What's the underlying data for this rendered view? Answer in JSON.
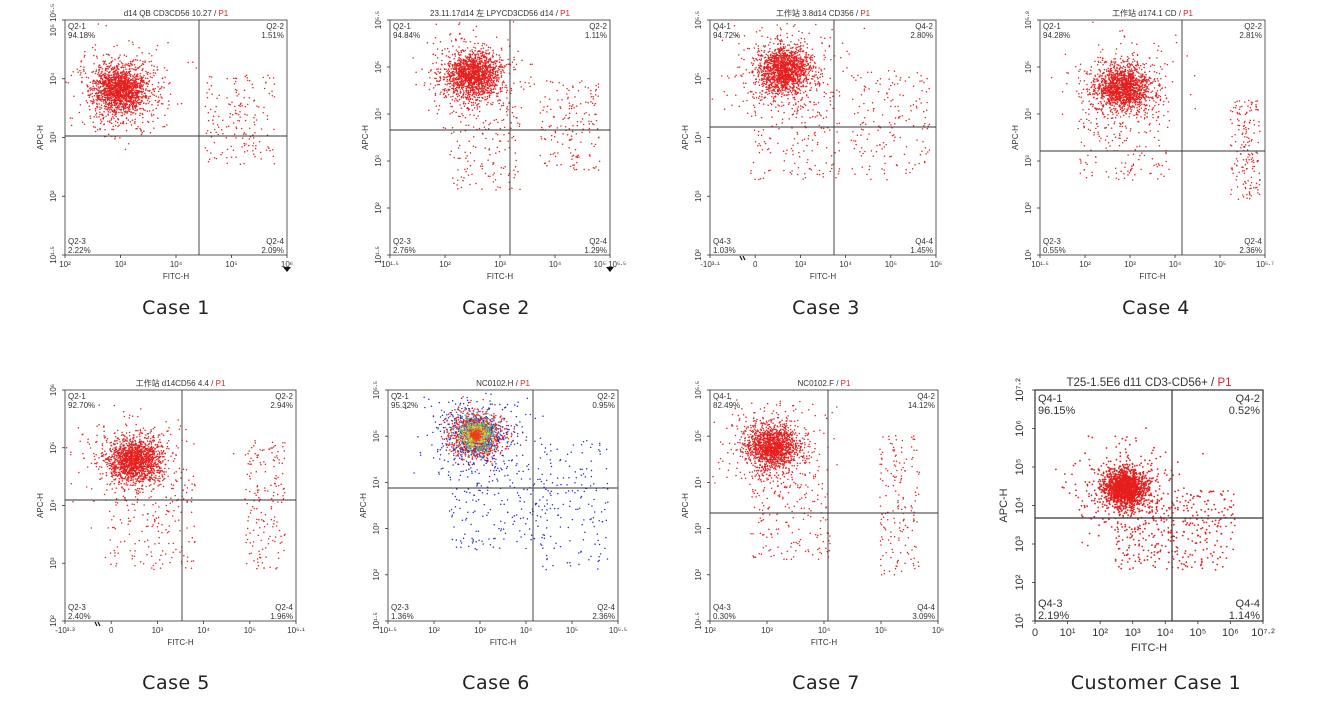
{
  "colors": {
    "dots": "#e61e1e",
    "blue": "#1e2fd6",
    "axis": "#333333",
    "quad": "#333333"
  },
  "captions": [
    "Case 1",
    "Case 2",
    "Case 3",
    "Case 4",
    "Case 5",
    "Case 6",
    "Case 7",
    "Customer Case 1"
  ],
  "chart_data": [
    {
      "type": "scatter",
      "title": "d14 QB CD3CD56 10.27",
      "population": "P1",
      "xlabel": "FITC-H",
      "ylabel": "APC-H",
      "x_ticks": [
        "10²",
        "10³",
        "10⁴",
        "10⁵",
        "10⁶"
      ],
      "y_ticks": [
        "10¹·⁵",
        "10²",
        "10³",
        "10⁴",
        "10⁵ 10⁵·⁵"
      ],
      "quadrants": [
        {
          "name": "Q2-1",
          "pct": "94.18%"
        },
        {
          "name": "Q2-2",
          "pct": "1.51%"
        },
        {
          "name": "Q2-3",
          "pct": "2.22%"
        },
        {
          "name": "Q2-4",
          "pct": "2.09%"
        }
      ]
    },
    {
      "type": "scatter",
      "title": "23.11.17d14 左 LPYCD3CD56 d14",
      "population": "P1",
      "xlabel": "FITC-H",
      "ylabel": "APC-H",
      "x_ticks": [
        "10¹·⁵",
        "10²",
        "10³",
        "10⁴",
        "10⁵ 10⁵·⁵"
      ],
      "y_ticks": [
        "10¹·⁵",
        "10²",
        "10³",
        "10⁴",
        "10⁵",
        "10⁵·⁵"
      ],
      "quadrants": [
        {
          "name": "Q2-1",
          "pct": "94.84%"
        },
        {
          "name": "Q2-2",
          "pct": "1.11%"
        },
        {
          "name": "Q2-3",
          "pct": "2.76%"
        },
        {
          "name": "Q2-4",
          "pct": "1.29%"
        }
      ]
    },
    {
      "type": "scatter",
      "title": "工作站 3.8d14 CD356",
      "population": "P1",
      "xlabel": "FITC-H",
      "ylabel": "APC-H",
      "x_ticks": [
        "-10³·¹",
        "0",
        "10³",
        "10⁴",
        "10⁵",
        "10⁶"
      ],
      "y_ticks": [
        "10²",
        "10³",
        "10⁴",
        "10⁵",
        "10⁵·⁵"
      ],
      "quadrants": [
        {
          "name": "Q4-1",
          "pct": "94.72%"
        },
        {
          "name": "Q4-2",
          "pct": "2.80%"
        },
        {
          "name": "Q4-3",
          "pct": "1.03%"
        },
        {
          "name": "Q4-4",
          "pct": "1.45%"
        }
      ]
    },
    {
      "type": "scatter",
      "title": "工作站 d174.1 CD",
      "population": "P1",
      "xlabel": "FITC-H",
      "ylabel": "APC-H",
      "x_ticks": [
        "10¹·⁵",
        "10²",
        "10³",
        "10⁴",
        "10⁵",
        "10⁵·⁷"
      ],
      "y_ticks": [
        "10¹",
        "10²",
        "10³",
        "10⁴",
        "10⁵",
        "10⁵·⁸"
      ],
      "quadrants": [
        {
          "name": "Q2-1",
          "pct": "94.28%"
        },
        {
          "name": "Q2-2",
          "pct": "2.81%"
        },
        {
          "name": "Q2-3",
          "pct": "0.55%"
        },
        {
          "name": "Q2-4",
          "pct": "2.36%"
        }
      ]
    },
    {
      "type": "scatter",
      "title": "工作站 d14CD56 4.4",
      "population": "P1",
      "xlabel": "FITC-H",
      "ylabel": "APC-H",
      "x_ticks": [
        "-10³·³",
        "0",
        "10³",
        "10⁴",
        "10⁵",
        "10⁶·¹"
      ],
      "y_ticks": [
        "10²",
        "10³",
        "10⁴",
        "10⁵",
        "10⁶"
      ],
      "quadrants": [
        {
          "name": "Q2-1",
          "pct": "92.70%"
        },
        {
          "name": "Q2-2",
          "pct": "2.94%"
        },
        {
          "name": "Q2-3",
          "pct": "2.40%"
        },
        {
          "name": "Q2-4",
          "pct": "1.96%"
        }
      ]
    },
    {
      "type": "scatter",
      "title": "NC0102.H",
      "population": "P1",
      "xlabel": "FITC-H",
      "ylabel": "APC-H",
      "x_ticks": [
        "10¹·⁵",
        "10²",
        "10³",
        "10⁴",
        "10⁵",
        "10⁵·⁵"
      ],
      "y_ticks": [
        "10¹·⁵",
        "10²",
        "10³",
        "10⁴",
        "10⁵",
        "10⁵·⁵"
      ],
      "quadrants": [
        {
          "name": "Q2-1",
          "pct": "95.32%"
        },
        {
          "name": "Q2-2",
          "pct": "0.95%"
        },
        {
          "name": "Q2-3",
          "pct": "1.36%"
        },
        {
          "name": "Q2-4",
          "pct": "2.36%"
        }
      ]
    },
    {
      "type": "scatter",
      "title": "NC0102.F",
      "population": "P1",
      "xlabel": "FITC-H",
      "ylabel": "APC-H",
      "x_ticks": [
        "10²",
        "10³",
        "10⁴",
        "10⁵",
        "10⁶"
      ],
      "y_ticks": [
        "10¹·⁵",
        "10²",
        "10³",
        "10⁴",
        "10⁵",
        "10⁵·⁵"
      ],
      "quadrants": [
        {
          "name": "Q4-1",
          "pct": "82.49%"
        },
        {
          "name": "Q4-2",
          "pct": "14.12%"
        },
        {
          "name": "Q4-3",
          "pct": "0.30%"
        },
        {
          "name": "Q4-4",
          "pct": "3.09%"
        }
      ]
    },
    {
      "type": "scatter",
      "title": "T25-1.5E6 d11 CD3-CD56+",
      "population": "P1",
      "xlabel": "FITC-H",
      "ylabel": "APC-H",
      "x_ticks": [
        "0",
        "10¹",
        "10²",
        "10³",
        "10⁴",
        "10⁵",
        "10⁶",
        "10⁷·²"
      ],
      "y_ticks": [
        "10¹",
        "10²",
        "10³",
        "10⁴",
        "10⁵",
        "10⁶",
        "10⁷·²"
      ],
      "quadrants": [
        {
          "name": "Q4-1",
          "pct": "96.15%"
        },
        {
          "name": "Q4-2",
          "pct": "0.52%"
        },
        {
          "name": "Q4-3",
          "pct": "2.19%"
        },
        {
          "name": "Q4-4",
          "pct": "1.14%"
        }
      ]
    }
  ]
}
